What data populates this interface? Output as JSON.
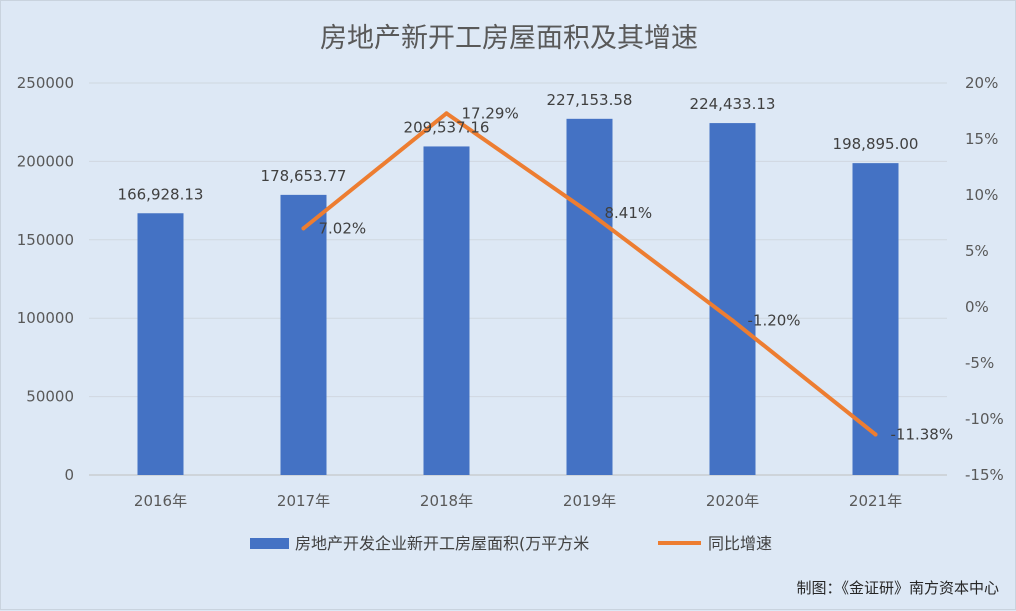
{
  "chart_data": {
    "type": "bar+line",
    "title": "房地产新开工房屋面积及其增速",
    "categories": [
      "2016年",
      "2017年",
      "2018年",
      "2019年",
      "2020年",
      "2021年"
    ],
    "series": [
      {
        "name": "房地产开发企业新开工房屋面积(万平方米",
        "type": "bar",
        "axis": "left",
        "color": "#4472c4",
        "values": [
          166928.13,
          178653.77,
          209537.16,
          227153.58,
          224433.13,
          198895.0
        ],
        "labels": [
          "166,928.13",
          "178,653.77",
          "209,537.16",
          "227,153.58",
          "224,433.13",
          "198,895.00"
        ]
      },
      {
        "name": "同比增速",
        "type": "line",
        "axis": "right",
        "color": "#ed7d31",
        "values": [
          null,
          7.02,
          17.29,
          8.41,
          -1.2,
          -11.38
        ],
        "labels": [
          null,
          "7.02%",
          "17.29%",
          "8.41%",
          "-1.20%",
          "-11.38%"
        ]
      }
    ],
    "y_left": {
      "min": 0,
      "max": 250000,
      "ticks": [
        "0",
        "50000",
        "100000",
        "150000",
        "200000",
        "250000"
      ]
    },
    "y_right": {
      "min": -15,
      "max": 20,
      "ticks": [
        "-15%",
        "-10%",
        "-5%",
        "0%",
        "5%",
        "10%",
        "15%",
        "20%"
      ]
    },
    "grid": true,
    "legend": "bottom"
  },
  "source_note": "制图：《金证研》南方资本中心"
}
